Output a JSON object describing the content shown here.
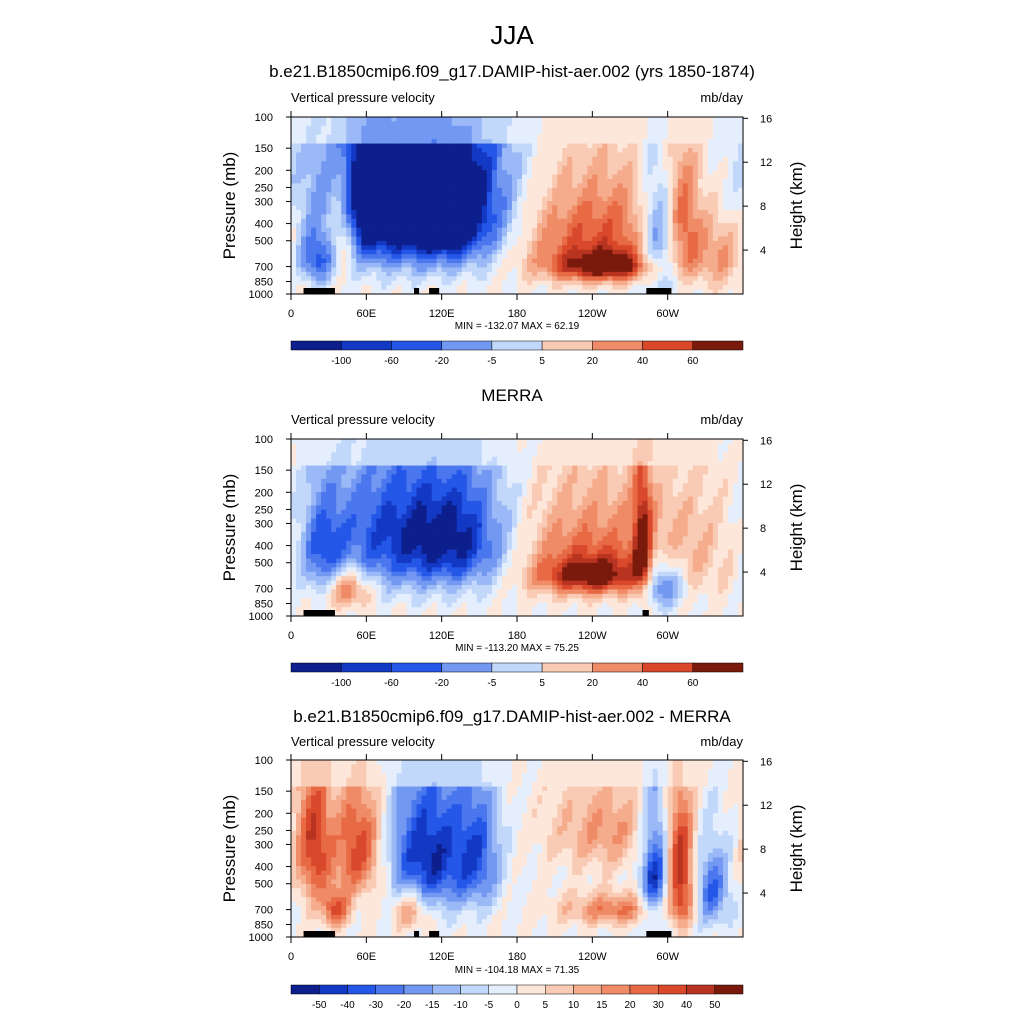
{
  "figure_title": "JJA",
  "colors": {
    "neg": [
      "#0d1f8c",
      "#1238c4",
      "#2456e8",
      "#4a76ee",
      "#7398f2",
      "#9bb9f6",
      "#c2d8fa",
      "#e4eefc"
    ],
    "pos": [
      "#fde7da",
      "#f9cbb4",
      "#f5ac8d",
      "#ef8b66",
      "#e86a45",
      "#d9482b",
      "#b83420",
      "#7a1a0c"
    ]
  },
  "chart_data": [
    {
      "type": "heatmap",
      "title": "b.e21.B1850cmip6.f09_g17.DAMIP-hist-aer.002 (yrs 1850-1874)",
      "left_label": "Vertical pressure velocity",
      "units": "mb/day",
      "ylabel": "Pressure (mb)",
      "ylabel_right": "Height (km)",
      "xticks": [
        "0",
        "60E",
        "120E",
        "180",
        "120W",
        "60W"
      ],
      "yticks": [
        "100",
        "150",
        "200",
        "250",
        "300",
        "400",
        "500",
        "700",
        "850",
        "1000"
      ],
      "right_ticks": [
        "16",
        "12",
        "8",
        "4"
      ],
      "minmax": "MIN = -132.07  MAX =  62.19",
      "colorbar_labels": [
        "-100",
        "-60",
        "-20",
        "-5",
        "5",
        "20",
        "40",
        "60"
      ],
      "blobs": [
        {
          "lon": 60,
          "p": 300,
          "w": 14,
          "h": 420,
          "v": -4
        },
        {
          "lon": 95,
          "p": 280,
          "w": 55,
          "h": 520,
          "v": -8
        },
        {
          "lon": 125,
          "p": 350,
          "w": 30,
          "h": 400,
          "v": -6
        },
        {
          "lon": 240,
          "p": 450,
          "w": 50,
          "h": 420,
          "v": 5
        },
        {
          "lon": 250,
          "p": 700,
          "w": 30,
          "h": 200,
          "v": 7
        },
        {
          "lon": 295,
          "p": 500,
          "w": 12,
          "h": 500,
          "v": -7
        },
        {
          "lon": 310,
          "p": 400,
          "w": 10,
          "h": 500,
          "v": 5
        },
        {
          "lon": 20,
          "p": 650,
          "w": 12,
          "h": 300,
          "v": -5
        },
        {
          "lon": 40,
          "p": 450,
          "w": 8,
          "h": 400,
          "v": 5
        },
        {
          "lon": 345,
          "p": 600,
          "w": 18,
          "h": 400,
          "v": 3
        }
      ],
      "land": [
        [
          10,
          35
        ],
        [
          98,
          102
        ],
        [
          110,
          118
        ],
        [
          283,
          303
        ]
      ]
    },
    {
      "type": "heatmap",
      "title": "MERRA",
      "left_label": "Vertical pressure velocity",
      "units": "mb/day",
      "ylabel": "Pressure (mb)",
      "ylabel_right": "Height (km)",
      "xticks": [
        "0",
        "60E",
        "120E",
        "180",
        "120W",
        "60W"
      ],
      "yticks": [
        "100",
        "150",
        "200",
        "250",
        "300",
        "400",
        "500",
        "700",
        "850",
        "1000"
      ],
      "right_ticks": [
        "16",
        "12",
        "8",
        "4"
      ],
      "minmax": "MIN = -113.20  MAX =  75.25",
      "colorbar_labels": [
        "-100",
        "-60",
        "-20",
        "-5",
        "5",
        "20",
        "40",
        "60"
      ],
      "blobs": [
        {
          "lon": 85,
          "p": 350,
          "w": 45,
          "h": 450,
          "v": -6
        },
        {
          "lon": 140,
          "p": 380,
          "w": 30,
          "h": 400,
          "v": -5
        },
        {
          "lon": 240,
          "p": 420,
          "w": 55,
          "h": 400,
          "v": 4
        },
        {
          "lon": 240,
          "p": 600,
          "w": 30,
          "h": 200,
          "v": 6
        },
        {
          "lon": 280,
          "p": 400,
          "w": 5,
          "h": 500,
          "v": 6
        },
        {
          "lon": 295,
          "p": 650,
          "w": 12,
          "h": 300,
          "v": -6
        },
        {
          "lon": 25,
          "p": 450,
          "w": 12,
          "h": 400,
          "v": -4
        },
        {
          "lon": 45,
          "p": 700,
          "w": 12,
          "h": 250,
          "v": 5
        },
        {
          "lon": 330,
          "p": 400,
          "w": 30,
          "h": 500,
          "v": 1
        }
      ],
      "land": [
        [
          10,
          35
        ],
        [
          280,
          285
        ]
      ]
    },
    {
      "type": "heatmap",
      "title": "b.e21.B1850cmip6.f09_g17.DAMIP-hist-aer.002 - MERRA",
      "left_label": "Vertical pressure velocity",
      "units": "mb/day",
      "ylabel": "Pressure (mb)",
      "ylabel_right": "Height (km)",
      "xticks": [
        "0",
        "60E",
        "120E",
        "180",
        "120W",
        "60W"
      ],
      "yticks": [
        "100",
        "150",
        "200",
        "250",
        "300",
        "400",
        "500",
        "700",
        "850",
        "1000"
      ],
      "right_ticks": [
        "16",
        "12",
        "8",
        "4"
      ],
      "minmax": "MIN = -104.18  MAX =  71.35",
      "colorbar_labels": [
        "-50",
        "-40",
        "-30",
        "-20",
        "-15",
        "-10",
        "-5",
        "0",
        "5",
        "10",
        "15",
        "20",
        "30",
        "40",
        "50"
      ],
      "blobs": [
        {
          "lon": 18,
          "p": 300,
          "w": 10,
          "h": 400,
          "v": 6
        },
        {
          "lon": 55,
          "p": 320,
          "w": 14,
          "h": 350,
          "v": 6
        },
        {
          "lon": 35,
          "p": 700,
          "w": 8,
          "h": 250,
          "v": 5
        },
        {
          "lon": 110,
          "p": 350,
          "w": 25,
          "h": 450,
          "v": -7
        },
        {
          "lon": 150,
          "p": 350,
          "w": 12,
          "h": 400,
          "v": -4
        },
        {
          "lon": 250,
          "p": 250,
          "w": 30,
          "h": 200,
          "v": 3
        },
        {
          "lon": 260,
          "p": 700,
          "w": 30,
          "h": 200,
          "v": 4
        },
        {
          "lon": 290,
          "p": 450,
          "w": 8,
          "h": 500,
          "v": -7
        },
        {
          "lon": 310,
          "p": 450,
          "w": 8,
          "h": 500,
          "v": 7
        },
        {
          "lon": 335,
          "p": 550,
          "w": 10,
          "h": 400,
          "v": -5
        },
        {
          "lon": 95,
          "p": 700,
          "w": 10,
          "h": 250,
          "v": 4
        }
      ],
      "land": [
        [
          10,
          35
        ],
        [
          98,
          102
        ],
        [
          110,
          118
        ],
        [
          283,
          303
        ]
      ]
    }
  ]
}
